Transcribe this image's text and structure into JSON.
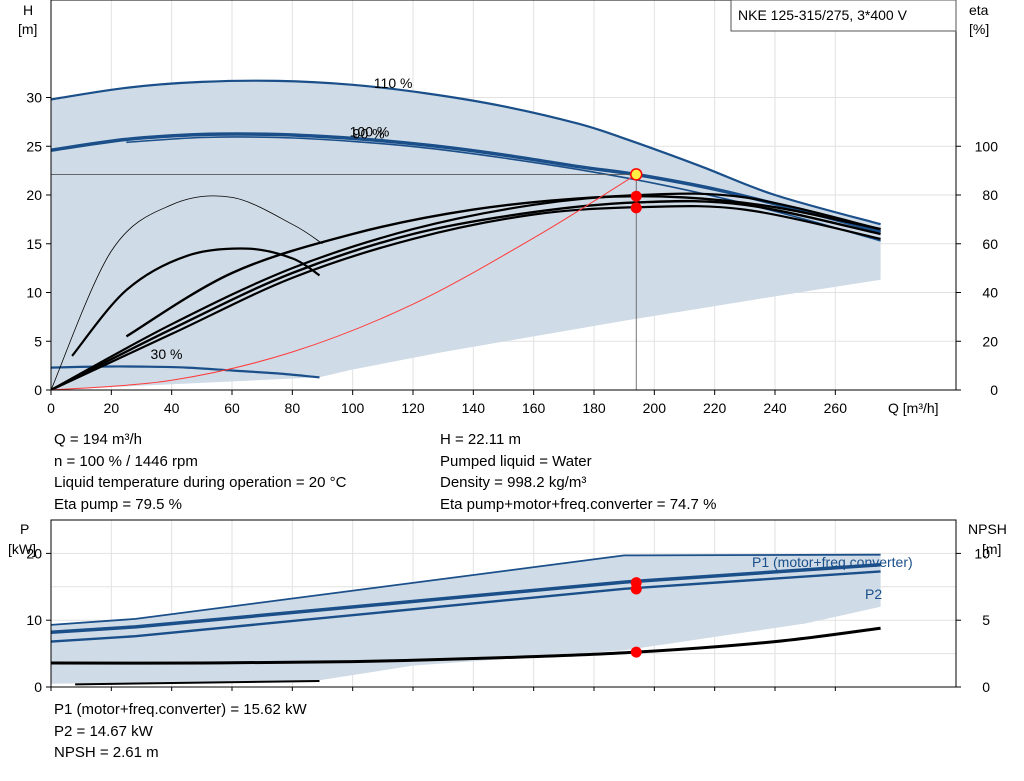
{
  "chart_data": [
    {
      "type": "line",
      "title": "NKE 125-315/275, 3*400 V",
      "xlabel": "Q [m³/h]",
      "ylabel_line1": "H",
      "ylabel_line2": "[m]",
      "y2label_line1": "eta",
      "y2label_line2": "[%]",
      "xlim": [
        0,
        300
      ],
      "ylim": [
        0,
        40
      ],
      "y2lim": [
        0,
        160
      ],
      "xticks": [
        0,
        20,
        40,
        60,
        80,
        100,
        120,
        140,
        160,
        180,
        200,
        220,
        240,
        260
      ],
      "yticks": [
        0,
        5,
        10,
        15,
        20,
        25,
        30
      ],
      "y2ticks": [
        0,
        20,
        40,
        60,
        80,
        100
      ],
      "grid": true,
      "speed_labels": [
        {
          "text": "110 %",
          "x": 107,
          "y": 31.0
        },
        {
          "text": "100 %",
          "x": 99,
          "y": 26.0
        },
        {
          "text": "90 %",
          "x": 100,
          "y": 25.8
        },
        {
          "text": "30 %",
          "x": 33,
          "y": 3.2
        }
      ],
      "head_curves": [
        {
          "name": "110 %",
          "x": [
            0,
            25,
            50,
            75,
            100,
            125,
            150,
            175,
            190,
            215,
            240,
            275
          ],
          "y": [
            29.8,
            31.0,
            31.6,
            31.7,
            31.3,
            30.4,
            29.1,
            27.3,
            25.8,
            23.0,
            20.0,
            17.0
          ]
        },
        {
          "name": "100 %",
          "x": [
            0,
            25,
            50,
            75,
            100,
            125,
            150,
            175,
            194,
            220,
            250,
            275
          ],
          "y": [
            24.6,
            25.7,
            26.2,
            26.2,
            25.8,
            25.1,
            24.1,
            22.9,
            22.1,
            20.6,
            18.3,
            16.2
          ]
        },
        {
          "name": "90 %",
          "x": [
            25,
            50,
            75,
            100,
            125,
            150,
            175,
            200,
            225,
            250,
            275
          ],
          "y": [
            25.4,
            25.9,
            25.9,
            25.5,
            24.8,
            23.8,
            22.6,
            21.2,
            19.5,
            17.5,
            15.3
          ]
        },
        {
          "name": "30 %",
          "x": [
            0,
            15,
            30,
            45,
            60,
            75,
            89
          ],
          "y": [
            2.3,
            2.4,
            2.4,
            2.3,
            2.0,
            1.7,
            1.3
          ]
        }
      ],
      "eta_curves": [
        {
          "x": [
            0,
            20,
            40,
            60,
            80,
            90
          ],
          "y": [
            0,
            57,
            76,
            79,
            68,
            60
          ]
        },
        {
          "x": [
            7,
            25,
            45,
            65,
            80,
            89
          ],
          "y": [
            14,
            41,
            55,
            58,
            54,
            47
          ]
        },
        {
          "x": [
            25,
            60,
            100,
            140,
            180,
            210,
            240,
            275
          ],
          "y": [
            22,
            48,
            64,
            74,
            79,
            79,
            75,
            66
          ]
        },
        {
          "x": [
            0,
            40,
            80,
            120,
            160,
            195,
            230,
            275
          ],
          "y": [
            0,
            27,
            50,
            66,
            76,
            80,
            79,
            66
          ]
        },
        {
          "x": [
            0,
            40,
            80,
            120,
            160,
            195,
            230,
            275
          ],
          "y": [
            0,
            25,
            48,
            64,
            73,
            77,
            76,
            64
          ]
        },
        {
          "x": [
            0,
            40,
            80,
            120,
            160,
            195,
            230,
            275
          ],
          "y": [
            0,
            23,
            46,
            62,
            72,
            75,
            74,
            62
          ]
        }
      ],
      "system_curve": {
        "x": [
          0,
          40,
          80,
          120,
          160,
          194
        ],
        "y": [
          0,
          1.0,
          3.9,
          8.8,
          15.6,
          22.1
        ]
      },
      "envelope": {
        "upper_x": [
          0,
          25,
          50,
          75,
          100,
          125,
          150,
          175,
          190,
          215,
          240,
          275
        ],
        "upper_y": [
          29.8,
          31.0,
          31.6,
          31.7,
          31.3,
          30.4,
          29.1,
          27.3,
          25.8,
          23.0,
          20.0,
          17.0
        ],
        "lower_x": [
          275,
          250,
          220,
          190,
          160,
          130,
          100,
          89,
          0
        ],
        "lower_y": [
          11.3,
          10.1,
          8.6,
          7.1,
          5.5,
          3.9,
          2.1,
          1.3,
          0
        ]
      },
      "duty_point": {
        "Q": 194,
        "H": 22.11,
        "eta_points": [
          79.5,
          74.7
        ]
      }
    },
    {
      "type": "line",
      "ylabel_line1": "P",
      "ylabel_line2": "[kW]",
      "y2label_line1": "NPSH",
      "y2label_line2": "[m]",
      "xlim": [
        0,
        300
      ],
      "ylim": [
        0,
        25
      ],
      "y2lim": [
        0,
        12.5
      ],
      "yticks": [
        0,
        10,
        20
      ],
      "y2ticks": [
        0,
        5,
        10
      ],
      "grid": true,
      "series": [
        {
          "name": "P1 (motor+freq.converter)",
          "x": [
            0,
            28,
            190,
            275
          ],
          "y": [
            8.2,
            9.0,
            15.7,
            18.3
          ]
        },
        {
          "name": "P2",
          "x": [
            0,
            28,
            190,
            275
          ],
          "y": [
            6.8,
            7.6,
            14.7,
            17.3
          ]
        }
      ],
      "max_power_curve": {
        "x": [
          0,
          28,
          190,
          275
        ],
        "y": [
          9.3,
          10.2,
          19.7,
          19.8
        ]
      },
      "npsh_curve": {
        "x": [
          0,
          50,
          100,
          150,
          194,
          240,
          275
        ],
        "y": [
          1.8,
          1.8,
          1.9,
          2.2,
          2.61,
          3.4,
          4.4
        ]
      },
      "power_envelope": {
        "upper_x": [
          0,
          28,
          190,
          275
        ],
        "upper_y": [
          9.3,
          10.2,
          19.7,
          19.8
        ],
        "lower_x": [
          275,
          250,
          190,
          120,
          89,
          0
        ],
        "lower_y": [
          12.0,
          9.5,
          5.5,
          3.2,
          1.0,
          0.5
        ]
      },
      "duty_point": {
        "Q": 194,
        "P1": 15.62,
        "P2": 14.67,
        "NPSH": 2.61
      }
    }
  ],
  "info_top_left": [
    "Q = 194 m³/h",
    "n = 100 % / 1446 rpm",
    "Liquid temperature during operation = 20 °C",
    "Eta pump = 79.5 %"
  ],
  "info_top_right": [
    "H = 22.11 m",
    "Pumped liquid = Water",
    "Density = 998.2 kg/m³",
    "Eta pump+motor+freq.converter = 74.7 %"
  ],
  "info_bottom": [
    "P1 (motor+freq.converter) = 15.62 kW",
    "P2 = 14.67 kW",
    "NPSH = 2.61 m"
  ]
}
